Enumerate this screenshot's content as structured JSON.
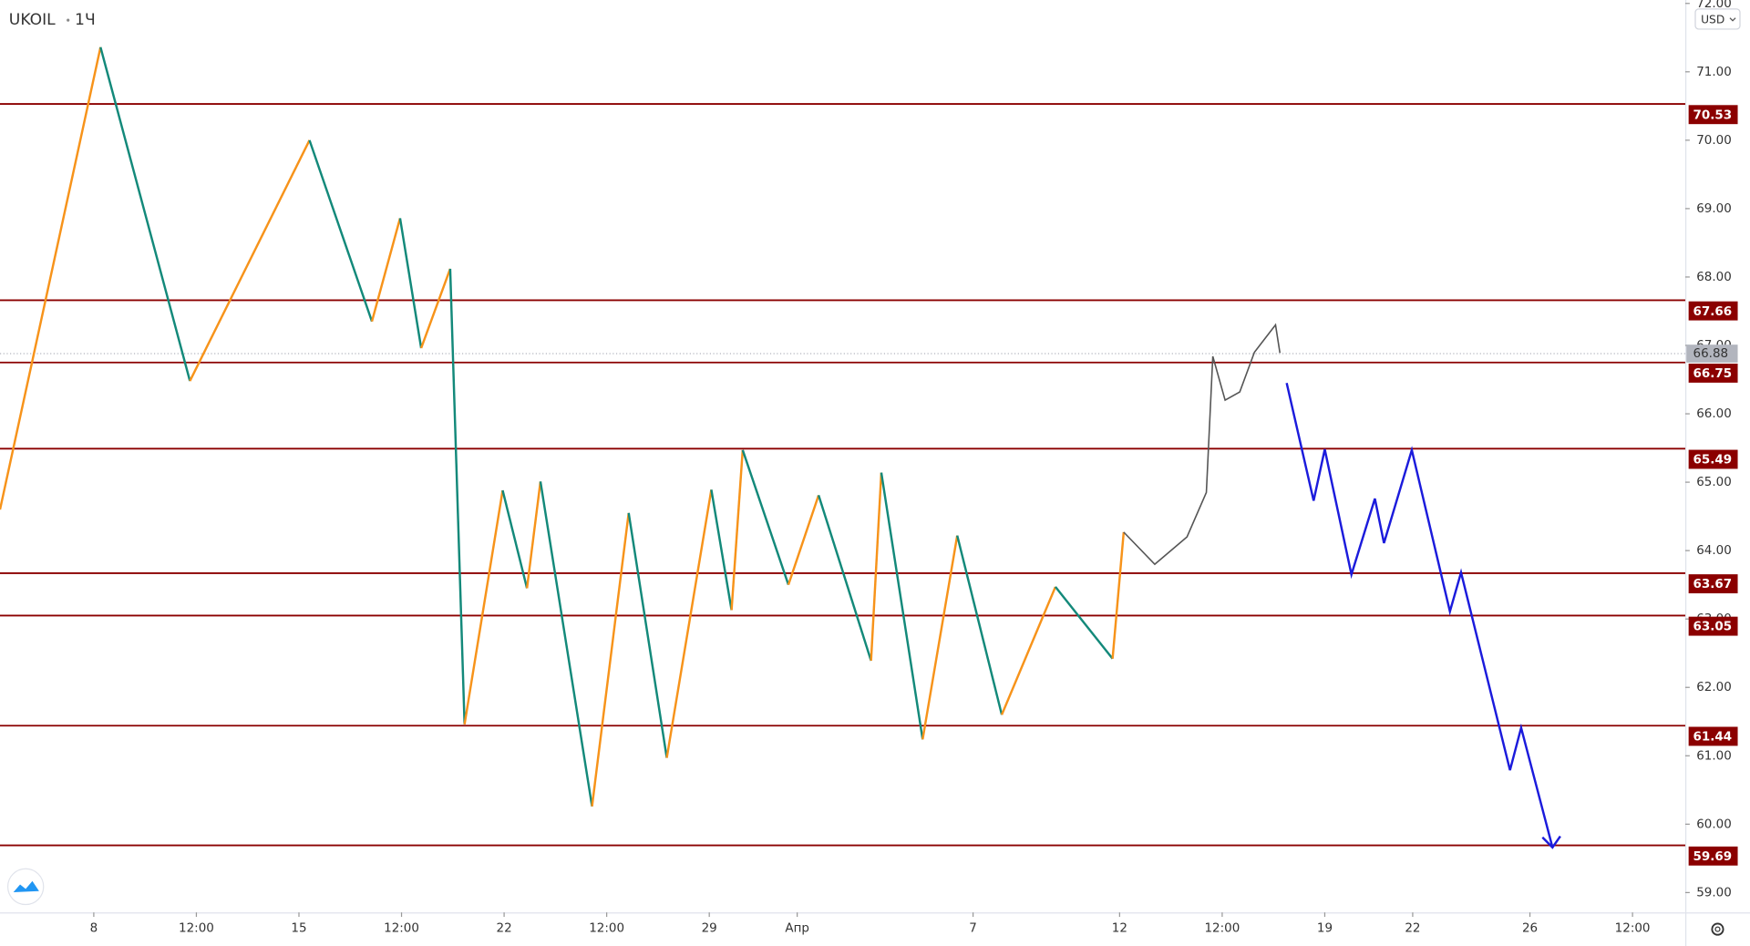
{
  "header": {
    "symbol": "UKOIL",
    "interval": "1Ч",
    "currency": "USD"
  },
  "chart_data": {
    "type": "line",
    "xlim": [
      4.8,
      62.3
    ],
    "ylim": [
      58.71,
      72.05
    ],
    "xticks": [
      8,
      {
        "value": 11.5,
        "label": "12:00"
      },
      15,
      {
        "value": 18.5,
        "label": "12:00"
      },
      22,
      {
        "value": 25.5,
        "label": "12:00"
      },
      29,
      {
        "value": 32,
        "label": "Апр"
      },
      {
        "value": 38,
        "label": "7"
      },
      {
        "value": 43,
        "label": "12"
      },
      {
        "value": 46.5,
        "label": "12:00"
      },
      {
        "value": 50,
        "label": "19"
      },
      {
        "value": 53,
        "label": "22"
      },
      {
        "value": 57,
        "label": "26"
      },
      {
        "value": 60.5,
        "label": "12:00"
      }
    ],
    "yticks": [
      {
        "value": 59,
        "label": "59.00"
      },
      {
        "value": 60,
        "label": "60.00"
      },
      {
        "value": 61,
        "label": "61.00"
      },
      {
        "value": 62,
        "label": "62.00"
      },
      {
        "value": 63,
        "label": "63.00"
      },
      {
        "value": 64,
        "label": "64.00"
      },
      {
        "value": 65,
        "label": "65.00"
      },
      {
        "value": 66,
        "label": "66.00"
      },
      {
        "value": 67,
        "label": "67.00"
      },
      {
        "value": 68,
        "label": "68.00"
      },
      {
        "value": 69,
        "label": "69.00"
      },
      {
        "value": 70,
        "label": "70.00"
      },
      {
        "value": 71,
        "label": "71.00"
      },
      {
        "value": 72,
        "label": "72.00"
      }
    ],
    "levels": {
      "values": [
        70.53,
        67.66,
        66.75,
        65.49,
        63.67,
        63.05,
        61.44,
        59.69
      ],
      "color": "#8b0000"
    },
    "last_price": {
      "value": 66.88,
      "color": "#b2b5be"
    },
    "zigzag": {
      "up_color": "#f7931a",
      "down_color": "#13897a",
      "x": [
        4.8,
        8.23,
        11.28,
        15.36,
        17.49,
        18.45,
        19.17,
        20.16,
        20.65,
        21.95,
        22.78,
        23.24,
        25.0,
        26.25,
        27.55,
        29.07,
        29.76,
        30.14,
        31.7,
        32.73,
        34.52,
        34.87,
        36.28,
        37.46,
        38.98,
        40.81,
        42.76,
        43.14
      ],
      "values": [
        64.6,
        71.36,
        66.48,
        70.0,
        67.35,
        68.86,
        66.96,
        68.12,
        61.46,
        64.88,
        63.45,
        65.01,
        60.26,
        64.55,
        60.97,
        64.89,
        63.13,
        65.47,
        63.5,
        64.81,
        62.39,
        65.14,
        61.24,
        64.22,
        61.6,
        63.47,
        62.42,
        64.27
      ]
    },
    "price": {
      "color": "#555555",
      "x": [
        43.14,
        44.2,
        45.3,
        45.96,
        46.18,
        46.6,
        47.1,
        47.6,
        48.32,
        48.47
      ],
      "values": [
        64.27,
        63.8,
        64.2,
        64.85,
        66.84,
        66.2,
        66.32,
        66.9,
        67.3,
        66.89
      ]
    },
    "forecast": {
      "color": "#1b1bdc",
      "x": [
        48.7,
        49.62,
        50.0,
        50.91,
        51.71,
        52.02,
        52.97,
        54.27,
        54.65,
        56.32,
        56.7,
        57.77
      ],
      "values": [
        66.45,
        64.73,
        65.48,
        63.65,
        64.76,
        64.11,
        65.47,
        63.11,
        63.68,
        60.79,
        61.41,
        59.66
      ]
    }
  }
}
